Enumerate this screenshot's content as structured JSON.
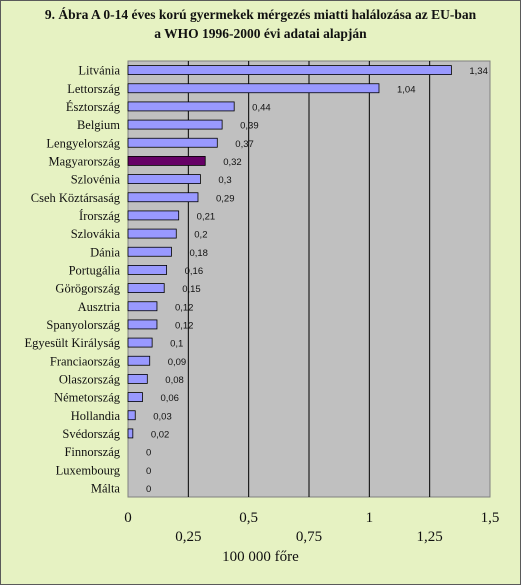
{
  "chart_data": {
    "type": "bar",
    "orientation": "horizontal",
    "title_lines": [
      "9. Ábra A 0-14 éves korú gyermekek mérgezés miatti halálozása az EU-ban",
      "a WHO 1996-2000 évi adatai alapján"
    ],
    "xlabel": "100 000 főre",
    "xlim": [
      0,
      1.5
    ],
    "major_ticks": [
      {
        "value": 0,
        "label": "0"
      },
      {
        "value": 0.5,
        "label": "0,5"
      },
      {
        "value": 1,
        "label": "1"
      },
      {
        "value": 1.5,
        "label": "1,5"
      }
    ],
    "minor_ticks": [
      {
        "value": 0.25,
        "label": "0,25"
      },
      {
        "value": 0.75,
        "label": "0,75"
      },
      {
        "value": 1.25,
        "label": "1,25"
      }
    ],
    "grid": true,
    "categories": [
      "Litvánia",
      "Lettország",
      "Észtország",
      "Belgium",
      "Lengyelország",
      "Magyarország",
      "Szlovénia",
      "Cseh Köztársaság",
      "Írország",
      "Szlovákia",
      "Dánia",
      "Portugália",
      "Görögország",
      "Ausztria",
      "Spanyolország",
      "Egyesült Királyság",
      "Franciaország",
      "Olaszország",
      "Németország",
      "Hollandia",
      "Svédország",
      "Finnország",
      "Luxembourg",
      "Málta"
    ],
    "values": [
      1.34,
      1.04,
      0.44,
      0.39,
      0.37,
      0.32,
      0.3,
      0.29,
      0.21,
      0.2,
      0.18,
      0.16,
      0.15,
      0.12,
      0.12,
      0.1,
      0.09,
      0.08,
      0.06,
      0.03,
      0.02,
      0,
      0,
      0
    ],
    "value_labels": [
      "1,34",
      "1,04",
      "0,44",
      "0,39",
      "0,37",
      "0,32",
      "0,3",
      "0,29",
      "0,21",
      "0,2",
      "0,18",
      "0,16",
      "0,15",
      "0,12",
      "0,12",
      "0,1",
      "0,09",
      "0,08",
      "0,06",
      "0,03",
      "0,02",
      "0",
      "0",
      "0"
    ],
    "highlight_category": "Magyarország",
    "colors": {
      "figure_background": "#e6f2c2",
      "plot_background": "#c0c0c0",
      "bar": "#9999ff",
      "highlight_bar": "#660066",
      "bar_edge": "#000000",
      "gridline": "#000000"
    }
  }
}
